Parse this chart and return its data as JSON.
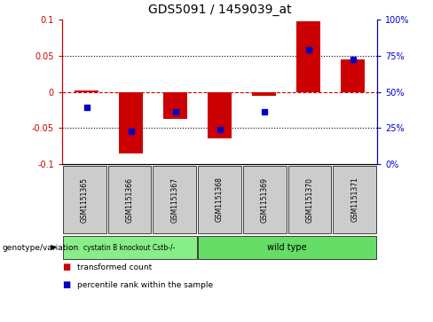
{
  "title": "GDS5091 / 1459039_at",
  "samples": [
    "GSM1151365",
    "GSM1151366",
    "GSM1151367",
    "GSM1151368",
    "GSM1151369",
    "GSM1151370",
    "GSM1151371"
  ],
  "red_bars": [
    0.002,
    -0.085,
    -0.038,
    -0.065,
    -0.005,
    0.098,
    0.045
  ],
  "blue_dots": [
    -0.022,
    -0.055,
    -0.028,
    -0.052,
    -0.028,
    0.058,
    0.045
  ],
  "ylim": [
    -0.1,
    0.1
  ],
  "yticks_left": [
    -0.1,
    -0.05,
    0.0,
    0.05,
    0.1
  ],
  "yticks_right": [
    0,
    25,
    50,
    75,
    100
  ],
  "yticks_right_vals": [
    -0.1,
    -0.05,
    0.0,
    0.05,
    0.1
  ],
  "red_color": "#cc0000",
  "blue_color": "#0000cc",
  "bar_width": 0.55,
  "group1_label": "cystatin B knockout Cstb-/-",
  "group2_label": "wild type",
  "group1_count": 3,
  "group2_count": 4,
  "group1_color": "#88ee88",
  "group2_color": "#66dd66",
  "genotype_label": "genotype/variation",
  "legend_red": "transformed count",
  "legend_blue": "percentile rank within the sample",
  "bg_color": "#ffffff",
  "sample_box_color": "#cccccc"
}
